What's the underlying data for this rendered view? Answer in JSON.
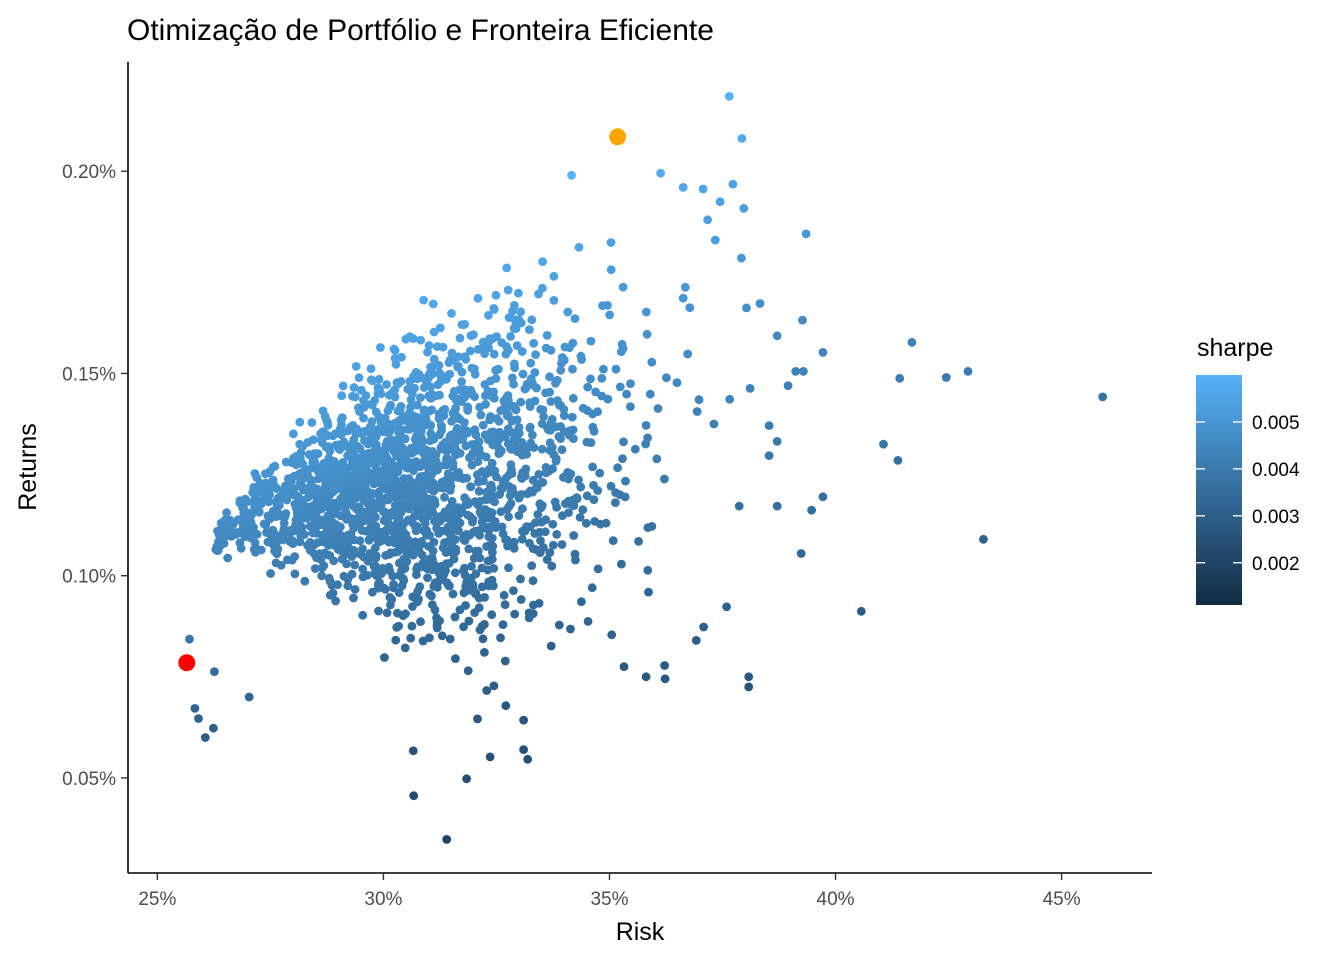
{
  "chart_data": {
    "type": "scatter",
    "title": "Otimização de Portfólio e Fronteira Eficiente",
    "xlabel": "Risk",
    "ylabel": "Returns",
    "xlim": [
      0.2435,
      0.47
    ],
    "ylim": [
      0.000265,
      0.00227
    ],
    "x_ticks": [
      {
        "value": 0.25,
        "label": "25%"
      },
      {
        "value": 0.3,
        "label": "30%"
      },
      {
        "value": 0.35,
        "label": "35%"
      },
      {
        "value": 0.4,
        "label": "40%"
      },
      {
        "value": 0.45,
        "label": "45%"
      }
    ],
    "y_ticks": [
      {
        "value": 0.0005,
        "label": "0.05%"
      },
      {
        "value": 0.001,
        "label": "0.10%"
      },
      {
        "value": 0.0015,
        "label": "0.15%"
      },
      {
        "value": 0.002,
        "label": "0.20%"
      }
    ],
    "grid": false,
    "legend": {
      "title": "sharpe",
      "placement": "right",
      "type": "colorbar",
      "range": [
        0.0011,
        0.006
      ],
      "ticks": [
        {
          "value": 0.002,
          "label": "0.002"
        },
        {
          "value": 0.003,
          "label": "0.003"
        },
        {
          "value": 0.004,
          "label": "0.004"
        },
        {
          "value": 0.005,
          "label": "0.005"
        }
      ],
      "colors": [
        "#132b43",
        "#56b1f7"
      ]
    },
    "highlights": [
      {
        "name": "min-risk-portfolio",
        "x": 0.2565,
        "y": 0.000785,
        "color": "#ff0000"
      },
      {
        "name": "max-sharpe-portfolio",
        "x": 0.3518,
        "y": 0.002085,
        "color": "#ffa500"
      }
    ],
    "sample_points": [
      [
        0.3765,
        0.002185
      ],
      [
        0.3793,
        0.002081
      ],
      [
        0.3416,
        0.00199
      ],
      [
        0.3613,
        0.001995
      ],
      [
        0.3773,
        0.001968
      ],
      [
        0.3707,
        0.001956
      ],
      [
        0.3663,
        0.00196
      ],
      [
        0.3797,
        0.001908
      ],
      [
        0.3935,
        0.001845
      ],
      [
        0.3717,
        0.00188
      ],
      [
        0.3734,
        0.00183
      ],
      [
        0.3792,
        0.001785
      ],
      [
        0.4169,
        0.001577
      ],
      [
        0.4293,
        0.001505
      ],
      [
        0.4245,
        0.00149
      ],
      [
        0.4142,
        0.001488
      ],
      [
        0.4591,
        0.001442
      ],
      [
        0.4106,
        0.001325
      ],
      [
        0.4138,
        0.001285
      ],
      [
        0.3972,
        0.001195
      ],
      [
        0.4327,
        0.00109
      ],
      [
        0.4057,
        0.000912
      ],
      [
        0.3808,
        0.000725
      ],
      [
        0.314,
        0.000348
      ],
      [
        0.3067,
        0.000456
      ],
      [
        0.3184,
        0.000498
      ],
      [
        0.3066,
        0.000567
      ],
      [
        0.3236,
        0.000552
      ],
      [
        0.3319,
        0.000546
      ],
      [
        0.331,
        0.00057
      ],
      [
        0.3208,
        0.000646
      ],
      [
        0.331,
        0.000643
      ],
      [
        0.2606,
        0.0006
      ],
      [
        0.2624,
        0.000623
      ],
      [
        0.2583,
        0.000672
      ],
      [
        0.2591,
        0.000647
      ],
      [
        0.2626,
        0.000763
      ],
      [
        0.2571,
        0.000843
      ],
      [
        0.2703,
        0.0007
      ],
      [
        0.3532,
        0.000775
      ],
      [
        0.3623,
        0.000745
      ],
      [
        0.3622,
        0.000778
      ],
      [
        0.3581,
        0.00075
      ],
      [
        0.3808,
        0.00075
      ],
      [
        0.3759,
        0.000923
      ],
      [
        0.3787,
        0.001172
      ],
      [
        0.3871,
        0.001172
      ],
      [
        0.3947,
        0.001162
      ],
      [
        0.3924,
        0.001055
      ],
      [
        0.3929,
        0.001505
      ],
      [
        0.3912,
        0.001505
      ],
      [
        0.3927,
        0.001632
      ],
      [
        0.3871,
        0.001593
      ],
      [
        0.3833,
        0.001673
      ],
      [
        0.3803,
        0.001662
      ],
      [
        0.3972,
        0.001552
      ],
      [
        0.3895,
        0.00147
      ],
      [
        0.3811,
        0.001463
      ],
      [
        0.3766,
        0.001436
      ],
      [
        0.3698,
        0.001435
      ],
      [
        0.3853,
        0.001371
      ],
      [
        0.3871,
        0.001332
      ],
      [
        0.3853,
        0.001297
      ],
      [
        0.3731,
        0.001375
      ]
    ],
    "bulk_cloud": {
      "description_note": "",
      "count": 2000
    }
  },
  "colors": {
    "min_risk": "#ff0000",
    "max_sharpe": "#ffa500",
    "low": "#132b43",
    "high": "#56b1f7"
  }
}
